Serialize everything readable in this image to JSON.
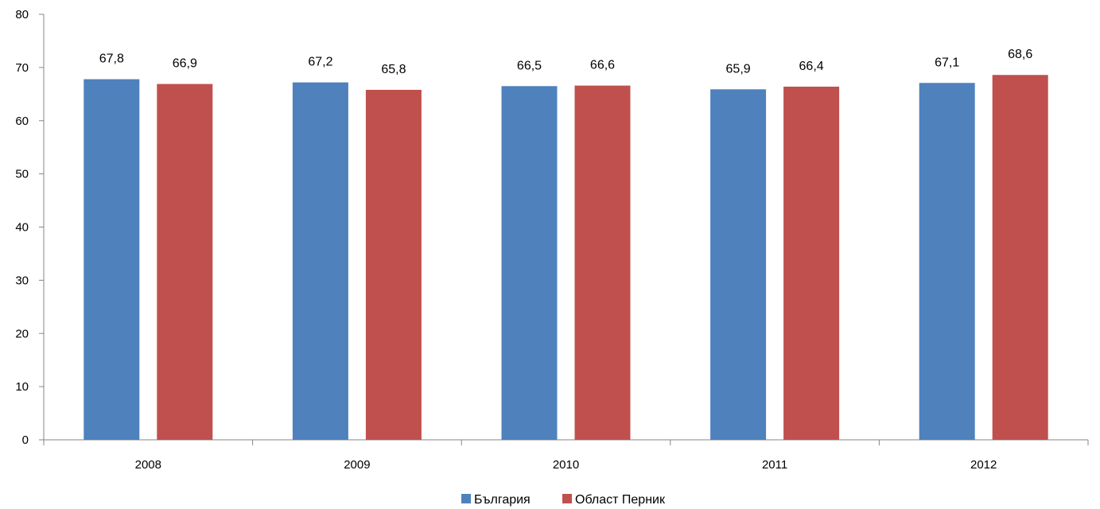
{
  "chart_data": {
    "type": "bar",
    "categories": [
      "2008",
      "2009",
      "2010",
      "2011",
      "2012"
    ],
    "series": [
      {
        "name": "България",
        "values": [
          67.8,
          67.2,
          66.5,
          65.9,
          67.1
        ],
        "labels": [
          "67,8",
          "67,2",
          "66,5",
          "65,9",
          "67,1"
        ],
        "color": "#4F81BD"
      },
      {
        "name": "Област Перник",
        "values": [
          66.9,
          65.8,
          66.6,
          66.4,
          68.6
        ],
        "labels": [
          "66,9",
          "65,8",
          "66,6",
          "66,4",
          "68,6"
        ],
        "color": "#C0504D"
      }
    ],
    "ylim": [
      0,
      80
    ],
    "yticks": [
      0,
      10,
      20,
      30,
      40,
      50,
      60,
      70,
      80
    ],
    "grid": false,
    "legend": "bottom"
  }
}
